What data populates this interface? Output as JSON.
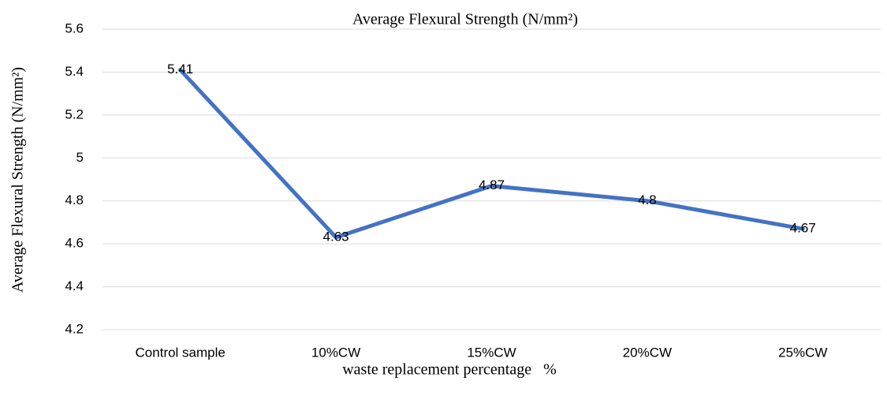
{
  "chart_data": {
    "type": "line",
    "title": "Average Flexural Strength (N/mm²)",
    "y_label": "Average Flexural Strength (N/mm²)",
    "x_label": "waste replacement percentage   %",
    "categories": [
      "Control sample",
      "10%CW",
      "15%CW",
      "20%CW",
      "25%CW"
    ],
    "series": [
      {
        "name": "Average Flexural Strength",
        "color": "#4472c4",
        "values": [
          5.41,
          4.63,
          4.87,
          4.8,
          4.67
        ]
      }
    ],
    "ylim": [
      4.2,
      5.6
    ],
    "yticks": [
      4.2,
      4.4,
      4.6,
      4.8,
      5,
      5.2,
      5.4,
      5.6
    ],
    "grid": true,
    "data_labels": true
  }
}
